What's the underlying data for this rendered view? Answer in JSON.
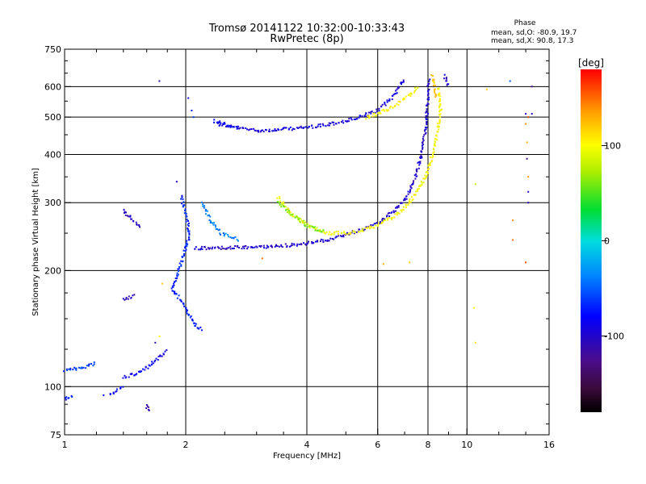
{
  "chart_data": {
    "type": "scatter",
    "title": "Tromsø 20141122 10:32:00-10:33:43",
    "subtitle": "RwPretec (8p)",
    "xlabel": "Frequency [MHz]",
    "ylabel": "Stationary phase Virtual Height [km]",
    "x_scale": "log",
    "y_scale": "log",
    "xlim": [
      1,
      16
    ],
    "ylim": [
      75,
      750
    ],
    "x_ticks": [
      1,
      2,
      4,
      6,
      8,
      10,
      16
    ],
    "x_tick_labels": [
      "1",
      "2",
      "4",
      "6",
      "8",
      "10",
      "16"
    ],
    "y_ticks": [
      75,
      100,
      200,
      300,
      400,
      500,
      600,
      750
    ],
    "y_tick_labels": [
      "75",
      "100",
      "200",
      "300",
      "400",
      "500",
      "600",
      "750"
    ],
    "x_grid": [
      2,
      4,
      6,
      8,
      10
    ],
    "y_grid": [
      100,
      200,
      300,
      400,
      500,
      600
    ],
    "phase_stats": {
      "title": "Phase",
      "line_o": "mean, sd,O: -80.9, 19.7",
      "line_x": "mean, sd,X:  90.8, 17.3"
    },
    "colorbar": {
      "label": "[deg]",
      "range": [
        -180,
        180
      ],
      "ticks": [
        100,
        0,
        -100
      ],
      "tick_labels": [
        "100",
        "0",
        "-100"
      ]
    },
    "traces": [
      {
        "phase": -95,
        "points": [
          [
            2.4,
            480
          ],
          [
            2.6,
            472
          ],
          [
            2.8,
            466
          ],
          [
            3.0,
            462
          ],
          [
            3.3,
            462
          ],
          [
            3.6,
            466
          ],
          [
            4.0,
            470
          ],
          [
            4.5,
            478
          ],
          [
            5.0,
            488
          ],
          [
            5.5,
            502
          ],
          [
            6.0,
            520
          ],
          [
            6.5,
            560
          ],
          [
            7.0,
            630
          ]
        ]
      },
      {
        "phase": -80,
        "points": [
          [
            2.35,
            490
          ],
          [
            2.5,
            478
          ],
          [
            2.7,
            468
          ]
        ]
      },
      {
        "phase": 100,
        "points": [
          [
            5.6,
            498
          ],
          [
            6.0,
            510
          ],
          [
            6.6,
            535
          ],
          [
            7.2,
            570
          ],
          [
            7.6,
            600
          ]
        ]
      },
      {
        "phase": -100,
        "points": [
          [
            2.1,
            228
          ],
          [
            2.5,
            229
          ],
          [
            3.0,
            230
          ],
          [
            3.5,
            232
          ],
          [
            4.0,
            235
          ],
          [
            4.5,
            240
          ],
          [
            5.0,
            248
          ],
          [
            5.5,
            256
          ],
          [
            6.0,
            266
          ],
          [
            6.6,
            285
          ],
          [
            7.0,
            305
          ],
          [
            7.4,
            340
          ],
          [
            7.7,
            400
          ],
          [
            7.9,
            470
          ],
          [
            8.0,
            560
          ],
          [
            8.05,
            630
          ]
        ]
      },
      {
        "phase": 100,
        "points": [
          [
            3.4,
            310
          ],
          [
            3.6,
            285
          ],
          [
            4.0,
            262
          ],
          [
            4.5,
            250
          ],
          [
            5.0,
            250
          ],
          [
            5.5,
            254
          ],
          [
            6.0,
            262
          ],
          [
            6.5,
            275
          ],
          [
            7.0,
            290
          ],
          [
            7.5,
            320
          ],
          [
            8.0,
            360
          ],
          [
            8.4,
            440
          ],
          [
            8.6,
            520
          ],
          [
            8.5,
            600
          ]
        ]
      },
      {
        "phase": 60,
        "points": [
          [
            3.4,
            300
          ],
          [
            3.7,
            278
          ],
          [
            4.0,
            262
          ],
          [
            4.4,
            252
          ]
        ]
      },
      {
        "phase": -70,
        "points": [
          [
            1.95,
            310
          ],
          [
            2.0,
            280
          ],
          [
            2.05,
            250
          ],
          [
            2.0,
            230
          ],
          [
            1.95,
            210
          ],
          [
            1.9,
            195
          ],
          [
            1.85,
            180
          ],
          [
            2.0,
            160
          ],
          [
            2.1,
            145
          ],
          [
            2.2,
            140
          ]
        ]
      },
      {
        "phase": -40,
        "points": [
          [
            2.2,
            300
          ],
          [
            2.3,
            270
          ],
          [
            2.45,
            250
          ],
          [
            2.6,
            245
          ],
          [
            2.7,
            240
          ]
        ]
      },
      {
        "phase": -85,
        "points": [
          [
            1.4,
            106
          ],
          [
            1.5,
            108
          ],
          [
            1.6,
            112
          ],
          [
            1.7,
            118
          ],
          [
            1.8,
            124
          ]
        ]
      },
      {
        "phase": -105,
        "points": [
          [
            1.4,
            285
          ],
          [
            1.45,
            275
          ],
          [
            1.55,
            260
          ]
        ]
      },
      {
        "phase": -110,
        "points": [
          [
            1.4,
            168
          ],
          [
            1.5,
            172
          ]
        ]
      },
      {
        "phase": -60,
        "points": [
          [
            1.0,
            110
          ],
          [
            1.1,
            112
          ],
          [
            1.2,
            115
          ]
        ]
      },
      {
        "phase": -110,
        "points": [
          [
            1.6,
            90
          ],
          [
            1.62,
            86
          ]
        ]
      },
      {
        "phase": -70,
        "points": [
          [
            1.0,
            93
          ],
          [
            1.05,
            94
          ]
        ]
      },
      {
        "phase": -80,
        "points": [
          [
            1.3,
            95
          ],
          [
            1.4,
            100
          ]
        ]
      },
      {
        "phase": 120,
        "points": [
          [
            8.2,
            640
          ],
          [
            8.3,
            600
          ],
          [
            8.4,
            560
          ]
        ]
      },
      {
        "phase": -100,
        "points": [
          [
            8.8,
            640
          ],
          [
            9.0,
            600
          ]
        ]
      }
    ],
    "scatter_points": [
      {
        "x": 1.72,
        "y": 620,
        "phase": -110
      },
      {
        "x": 2.03,
        "y": 560,
        "phase": -90
      },
      {
        "x": 2.07,
        "y": 520,
        "phase": -70
      },
      {
        "x": 2.09,
        "y": 500,
        "phase": -60
      },
      {
        "x": 1.9,
        "y": 340,
        "phase": -100
      },
      {
        "x": 3.1,
        "y": 215,
        "phase": 150
      },
      {
        "x": 6.2,
        "y": 208,
        "phase": 130
      },
      {
        "x": 7.2,
        "y": 210,
        "phase": 120
      },
      {
        "x": 10.5,
        "y": 335,
        "phase": 80
      },
      {
        "x": 10.5,
        "y": 130,
        "phase": 110
      },
      {
        "x": 10.4,
        "y": 160,
        "phase": 100
      },
      {
        "x": 11.2,
        "y": 590,
        "phase": 120
      },
      {
        "x": 12.8,
        "y": 620,
        "phase": -50
      },
      {
        "x": 13.0,
        "y": 270,
        "phase": 140
      },
      {
        "x": 13.0,
        "y": 240,
        "phase": 150
      },
      {
        "x": 14.0,
        "y": 510,
        "phase": -100
      },
      {
        "x": 14.2,
        "y": 500,
        "phase": 160
      },
      {
        "x": 14.0,
        "y": 480,
        "phase": 140
      },
      {
        "x": 14.1,
        "y": 430,
        "phase": 130
      },
      {
        "x": 14.1,
        "y": 390,
        "phase": -120
      },
      {
        "x": 14.2,
        "y": 350,
        "phase": 140
      },
      {
        "x": 14.2,
        "y": 320,
        "phase": -110
      },
      {
        "x": 14.2,
        "y": 300,
        "phase": -110
      },
      {
        "x": 14.0,
        "y": 210,
        "phase": 160
      },
      {
        "x": 1.75,
        "y": 185,
        "phase": 120
      },
      {
        "x": 1.72,
        "y": 135,
        "phase": 100
      },
      {
        "x": 1.68,
        "y": 130,
        "phase": -110
      },
      {
        "x": 1.25,
        "y": 95,
        "phase": -80
      },
      {
        "x": 14.5,
        "y": 600,
        "phase": -120
      },
      {
        "x": 14.5,
        "y": 510,
        "phase": -100
      }
    ]
  }
}
